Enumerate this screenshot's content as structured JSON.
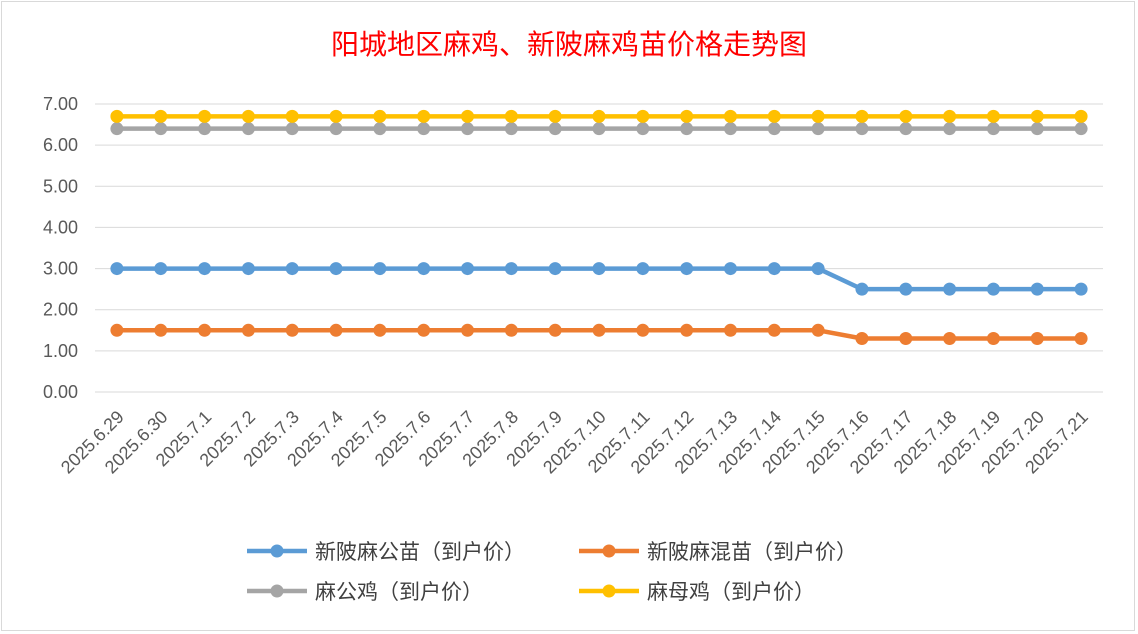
{
  "chart_data": {
    "type": "line",
    "title": "阳城地区麻鸡、新陂麻鸡苗价格走势图",
    "categories": [
      "2025.6.29",
      "2025.6.30",
      "2025.7.1",
      "2025.7.2",
      "2025.7.3",
      "2025.7.4",
      "2025.7.5",
      "2025.7.6",
      "2025.7.7",
      "2025.7.8",
      "2025.7.9",
      "2025.7.10",
      "2025.7.11",
      "2025.7.12",
      "2025.7.13",
      "2025.7.14",
      "2025.7.15",
      "2025.7.16",
      "2025.7.17",
      "2025.7.18",
      "2025.7.19",
      "2025.7.20",
      "2025.7.21"
    ],
    "yticks": [
      "0.00",
      "1.00",
      "2.00",
      "3.00",
      "4.00",
      "5.00",
      "6.00",
      "7.00"
    ],
    "ylim": [
      0,
      7
    ],
    "grid": true,
    "legend_position": "bottom",
    "series": [
      {
        "name": "新陂麻公苗（到户价）",
        "color": "#5b9bd5",
        "values": [
          3,
          3,
          3,
          3,
          3,
          3,
          3,
          3,
          3,
          3,
          3,
          3,
          3,
          3,
          3,
          3,
          3,
          2.5,
          2.5,
          2.5,
          2.5,
          2.5,
          2.5
        ]
      },
      {
        "name": "新陂麻混苗（到户价）",
        "color": "#ed7d31",
        "values": [
          1.5,
          1.5,
          1.5,
          1.5,
          1.5,
          1.5,
          1.5,
          1.5,
          1.5,
          1.5,
          1.5,
          1.5,
          1.5,
          1.5,
          1.5,
          1.5,
          1.5,
          1.3,
          1.3,
          1.3,
          1.3,
          1.3,
          1.3
        ]
      },
      {
        "name": "麻公鸡（到户价）",
        "color": "#a5a5a5",
        "values": [
          6.4,
          6.4,
          6.4,
          6.4,
          6.4,
          6.4,
          6.4,
          6.4,
          6.4,
          6.4,
          6.4,
          6.4,
          6.4,
          6.4,
          6.4,
          6.4,
          6.4,
          6.4,
          6.4,
          6.4,
          6.4,
          6.4,
          6.4
        ]
      },
      {
        "name": "麻母鸡（到户价）",
        "color": "#ffc000",
        "values": [
          6.7,
          6.7,
          6.7,
          6.7,
          6.7,
          6.7,
          6.7,
          6.7,
          6.7,
          6.7,
          6.7,
          6.7,
          6.7,
          6.7,
          6.7,
          6.7,
          6.7,
          6.7,
          6.7,
          6.7,
          6.7,
          6.7,
          6.7
        ]
      }
    ]
  }
}
